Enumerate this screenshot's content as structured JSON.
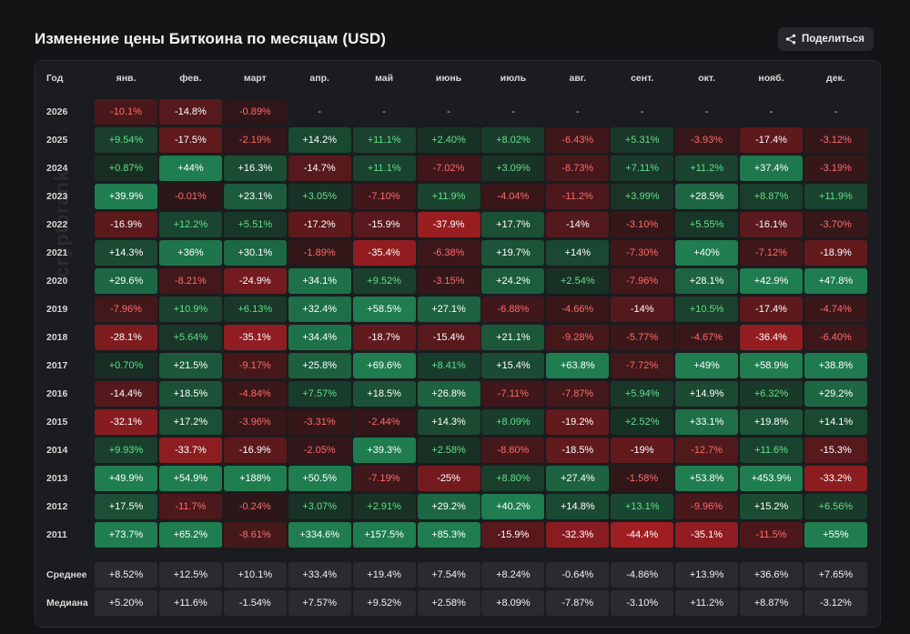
{
  "title": "Изменение цены Биткоина по месяцам (USD)",
  "share_label": "Поделиться",
  "watermark": "cryptorank",
  "chart_data": {
    "type": "heatmap",
    "title": "Изменение цены Биткоина по месяцам (USD)",
    "year_header": "Год",
    "months": [
      "янв.",
      "фев.",
      "март",
      "апр.",
      "май",
      "июнь",
      "июль",
      "авг.",
      "сент.",
      "окт.",
      "нояб.",
      "дек."
    ],
    "rows": [
      {
        "year": "2026",
        "values": [
          "-10.1%",
          "-14.8%",
          "-0.89%",
          "-",
          "-",
          "-",
          "-",
          "-",
          "-",
          "-",
          "-",
          "-"
        ]
      },
      {
        "year": "2025",
        "values": [
          "+9.54%",
          "-17.5%",
          "-2.19%",
          "+14.2%",
          "+11.1%",
          "+2.40%",
          "+8.02%",
          "-6.43%",
          "+5.31%",
          "-3.93%",
          "-17.4%",
          "-3.12%"
        ]
      },
      {
        "year": "2024",
        "values": [
          "+0.87%",
          "+44%",
          "+16.3%",
          "-14.7%",
          "+11.1%",
          "-7.02%",
          "+3.09%",
          "-8.73%",
          "+7.11%",
          "+11.2%",
          "+37.4%",
          "-3.19%"
        ]
      },
      {
        "year": "2023",
        "values": [
          "+39.9%",
          "-0.01%",
          "+23.1%",
          "+3.05%",
          "-7.10%",
          "+11.9%",
          "-4.04%",
          "-11.2%",
          "+3.99%",
          "+28.5%",
          "+8.87%",
          "+11.9%"
        ]
      },
      {
        "year": "2022",
        "values": [
          "-16.9%",
          "+12.2%",
          "+5.51%",
          "-17.2%",
          "-15.9%",
          "-37.9%",
          "+17.7%",
          "-14%",
          "-3.10%",
          "+5.55%",
          "-16.1%",
          "-3.70%"
        ]
      },
      {
        "year": "2021",
        "values": [
          "+14.3%",
          "+36%",
          "+30.1%",
          "-1.89%",
          "-35.4%",
          "-6.38%",
          "+19.7%",
          "+14%",
          "-7.30%",
          "+40%",
          "-7.12%",
          "-18.9%"
        ]
      },
      {
        "year": "2020",
        "values": [
          "+29.6%",
          "-8.21%",
          "-24.9%",
          "+34.1%",
          "+9.52%",
          "-3.15%",
          "+24.2%",
          "+2.54%",
          "-7.96%",
          "+28.1%",
          "+42.9%",
          "+47.8%"
        ]
      },
      {
        "year": "2019",
        "values": [
          "-7.96%",
          "+10.9%",
          "+6.13%",
          "+32.4%",
          "+58.5%",
          "+27.1%",
          "-6.88%",
          "-4.66%",
          "-14%",
          "+10.5%",
          "-17.4%",
          "-4.74%"
        ]
      },
      {
        "year": "2018",
        "values": [
          "-28.1%",
          "+5.64%",
          "-35.1%",
          "+34.4%",
          "-18.7%",
          "-15.4%",
          "+21.1%",
          "-9.28%",
          "-5.77%",
          "-4.67%",
          "-36.4%",
          "-6.40%"
        ]
      },
      {
        "year": "2017",
        "values": [
          "+0.70%",
          "+21.5%",
          "-9.17%",
          "+25.8%",
          "+69.6%",
          "+8.41%",
          "+15.4%",
          "+63.8%",
          "-7.72%",
          "+49%",
          "+58.9%",
          "+38.8%"
        ]
      },
      {
        "year": "2016",
        "values": [
          "-14.4%",
          "+18.5%",
          "-4.84%",
          "+7.57%",
          "+18.5%",
          "+26.8%",
          "-7.11%",
          "-7.87%",
          "+5.94%",
          "+14.9%",
          "+6.32%",
          "+29.2%"
        ]
      },
      {
        "year": "2015",
        "values": [
          "-32.1%",
          "+17.2%",
          "-3.96%",
          "-3.31%",
          "-2.44%",
          "+14.3%",
          "+8.09%",
          "-19.2%",
          "+2.52%",
          "+33.1%",
          "+19.8%",
          "+14.1%"
        ]
      },
      {
        "year": "2014",
        "values": [
          "+9.93%",
          "-33.7%",
          "-16.9%",
          "-2.05%",
          "+39.3%",
          "+2.58%",
          "-8.60%",
          "-18.5%",
          "-19%",
          "-12.7%",
          "+11.6%",
          "-15.3%"
        ]
      },
      {
        "year": "2013",
        "values": [
          "+49.9%",
          "+54.9%",
          "+188%",
          "+50.5%",
          "-7.19%",
          "-25%",
          "+8.80%",
          "+27.4%",
          "-1.58%",
          "+53.8%",
          "+453.9%",
          "-33.2%"
        ]
      },
      {
        "year": "2012",
        "values": [
          "+17.5%",
          "-11.7%",
          "-0.24%",
          "+3.07%",
          "+2.91%",
          "+29.2%",
          "+40.2%",
          "+14.8%",
          "+13.1%",
          "-9.96%",
          "+15.2%",
          "+6.56%"
        ]
      },
      {
        "year": "2011",
        "values": [
          "+73.7%",
          "+65.2%",
          "-8.61%",
          "+334.6%",
          "+157.5%",
          "+85.3%",
          "-15.9%",
          "-32.3%",
          "-44.4%",
          "-35.1%",
          "-11.5%",
          "+55%"
        ]
      }
    ],
    "summary": [
      {
        "label": "Среднее",
        "values": [
          "+8.52%",
          "+12.5%",
          "+10.1%",
          "+33.4%",
          "+19.4%",
          "+7.54%",
          "+8.24%",
          "-0.64%",
          "-4.86%",
          "+13.9%",
          "+36.6%",
          "+7.65%"
        ]
      },
      {
        "label": "Медиана",
        "values": [
          "+5.20%",
          "+11.6%",
          "-1.54%",
          "+7.57%",
          "+9.52%",
          "+2.58%",
          "+8.09%",
          "-7.87%",
          "-3.10%",
          "+11.2%",
          "+8.87%",
          "-3.12%"
        ]
      }
    ],
    "colors": {
      "positive_text": "#5fe08a",
      "negative_text": "#ff6a6a",
      "positive_fill": "#1f7a4e",
      "negative_fill": "#9a1f23"
    }
  }
}
